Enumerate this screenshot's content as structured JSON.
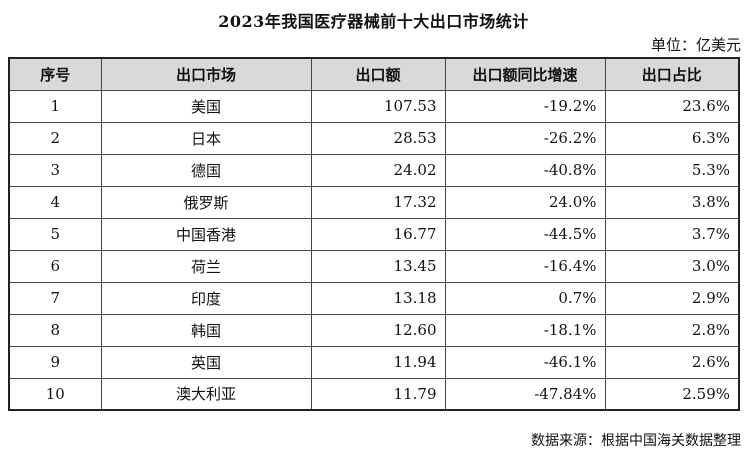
{
  "title": "2023年我国医疗器械前十大出口市场统计",
  "unit": "单位：亿美元",
  "headers": [
    "序号",
    "出口市场",
    "出口额",
    "出口额同比增速",
    "出口占比"
  ],
  "rows": [
    [
      "1",
      "美国",
      "107.53",
      "-19.2%",
      "23.6%"
    ],
    [
      "2",
      "日本",
      "28.53",
      "-26.2%",
      "6.3%"
    ],
    [
      "3",
      "德国",
      "24.02",
      "-40.8%",
      "5.3%"
    ],
    [
      "4",
      "俄罗斯",
      "17.32",
      "24.0%",
      "3.8%"
    ],
    [
      "5",
      "中国香港",
      "16.77",
      "-44.5%",
      "3.7%"
    ],
    [
      "6",
      "荷兰",
      "13.45",
      "-16.4%",
      "3.0%"
    ],
    [
      "7",
      "印度",
      "13.18",
      "0.7%",
      "2.9%"
    ],
    [
      "8",
      "韩国",
      "12.60",
      "-18.1%",
      "2.8%"
    ],
    [
      "9",
      "英国",
      "11.94",
      "-46.1%",
      "2.6%"
    ],
    [
      "10",
      "澳大利亚",
      "11.79",
      "-47.84%",
      "2.59%"
    ]
  ],
  "source": "数据来源：根据中国海关数据整理"
}
